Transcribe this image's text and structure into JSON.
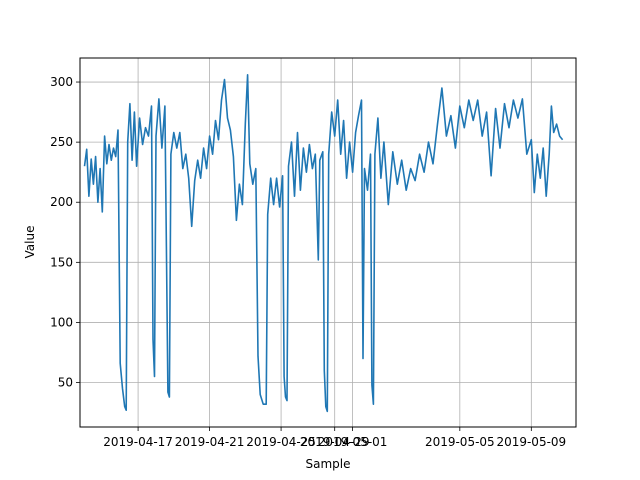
{
  "chart_data": {
    "type": "line",
    "title": "",
    "xlabel": "Sample",
    "ylabel": "Value",
    "grid": true,
    "x_tick_labels": [
      "2019-04-17",
      "2019-04-21",
      "2019-04-25",
      "2019-04-29",
      "2019-05-01",
      "2019-05-05",
      "2019-05-09"
    ],
    "x_tick_dates": [
      "2019-04-17",
      "2019-04-21",
      "2019-04-25",
      "2019-04-28",
      "2019-04-29",
      "2019-05-05",
      "2019-05-09"
    ],
    "xlim": [
      "2019-04-13T18:00",
      "2019-05-11T12:00"
    ],
    "y_ticks": [
      50,
      100,
      150,
      200,
      250,
      300
    ],
    "ylim": [
      13,
      320
    ],
    "series": [
      {
        "color": "#1f77b4",
        "points": [
          [
            "2019-04-14T00:00",
            230
          ],
          [
            "2019-04-14T03:00",
            244
          ],
          [
            "2019-04-14T06:00",
            205
          ],
          [
            "2019-04-14T09:00",
            236
          ],
          [
            "2019-04-14T12:00",
            215
          ],
          [
            "2019-04-14T15:00",
            238
          ],
          [
            "2019-04-14T18:00",
            200
          ],
          [
            "2019-04-14T21:00",
            228
          ],
          [
            "2019-04-15T00:00",
            192
          ],
          [
            "2019-04-15T03:00",
            255
          ],
          [
            "2019-04-15T06:00",
            232
          ],
          [
            "2019-04-15T09:00",
            248
          ],
          [
            "2019-04-15T12:00",
            235
          ],
          [
            "2019-04-15T15:00",
            245
          ],
          [
            "2019-04-15T18:00",
            238
          ],
          [
            "2019-04-15T21:00",
            260
          ],
          [
            "2019-04-16T00:00",
            66
          ],
          [
            "2019-04-16T03:00",
            45
          ],
          [
            "2019-04-16T06:00",
            30
          ],
          [
            "2019-04-16T08:00",
            27
          ],
          [
            "2019-04-16T10:00",
            250
          ],
          [
            "2019-04-16T13:00",
            282
          ],
          [
            "2019-04-16T16:00",
            235
          ],
          [
            "2019-04-16T19:00",
            275
          ],
          [
            "2019-04-16T22:00",
            230
          ],
          [
            "2019-04-17T02:00",
            270
          ],
          [
            "2019-04-17T06:00",
            248
          ],
          [
            "2019-04-17T10:00",
            262
          ],
          [
            "2019-04-17T14:00",
            255
          ],
          [
            "2019-04-17T18:00",
            280
          ],
          [
            "2019-04-17T20:00",
            86
          ],
          [
            "2019-04-17T22:00",
            55
          ],
          [
            "2019-04-18T00:00",
            255
          ],
          [
            "2019-04-18T04:00",
            286
          ],
          [
            "2019-04-18T08:00",
            245
          ],
          [
            "2019-04-18T12:00",
            280
          ],
          [
            "2019-04-18T14:00",
            163
          ],
          [
            "2019-04-18T16:00",
            42
          ],
          [
            "2019-04-18T18:00",
            38
          ],
          [
            "2019-04-18T20:00",
            240
          ],
          [
            "2019-04-19T00:00",
            258
          ],
          [
            "2019-04-19T04:00",
            245
          ],
          [
            "2019-04-19T08:00",
            258
          ],
          [
            "2019-04-19T12:00",
            228
          ],
          [
            "2019-04-19T16:00",
            240
          ],
          [
            "2019-04-19T20:00",
            220
          ],
          [
            "2019-04-20T00:00",
            180
          ],
          [
            "2019-04-20T04:00",
            218
          ],
          [
            "2019-04-20T08:00",
            235
          ],
          [
            "2019-04-20T12:00",
            220
          ],
          [
            "2019-04-20T16:00",
            245
          ],
          [
            "2019-04-20T20:00",
            228
          ],
          [
            "2019-04-21T00:00",
            255
          ],
          [
            "2019-04-21T04:00",
            240
          ],
          [
            "2019-04-21T08:00",
            268
          ],
          [
            "2019-04-21T12:00",
            252
          ],
          [
            "2019-04-21T16:00",
            285
          ],
          [
            "2019-04-21T20:00",
            302
          ],
          [
            "2019-04-22T00:00",
            270
          ],
          [
            "2019-04-22T04:00",
            260
          ],
          [
            "2019-04-22T08:00",
            238
          ],
          [
            "2019-04-22T12:00",
            185
          ],
          [
            "2019-04-22T16:00",
            215
          ],
          [
            "2019-04-22T20:00",
            198
          ],
          [
            "2019-04-23T00:00",
            265
          ],
          [
            "2019-04-23T03:00",
            306
          ],
          [
            "2019-04-23T06:00",
            232
          ],
          [
            "2019-04-23T10:00",
            215
          ],
          [
            "2019-04-23T14:00",
            228
          ],
          [
            "2019-04-23T17:00",
            72
          ],
          [
            "2019-04-23T20:00",
            40
          ],
          [
            "2019-04-24T00:00",
            32
          ],
          [
            "2019-04-24T04:00",
            32
          ],
          [
            "2019-04-24T06:00",
            190
          ],
          [
            "2019-04-24T10:00",
            220
          ],
          [
            "2019-04-24T14:00",
            198
          ],
          [
            "2019-04-24T18:00",
            220
          ],
          [
            "2019-04-24T22:00",
            196
          ],
          [
            "2019-04-25T02:00",
            222
          ],
          [
            "2019-04-25T04:00",
            55
          ],
          [
            "2019-04-25T06:00",
            38
          ],
          [
            "2019-04-25T08:00",
            35
          ],
          [
            "2019-04-25T10:00",
            230
          ],
          [
            "2019-04-25T14:00",
            250
          ],
          [
            "2019-04-25T18:00",
            205
          ],
          [
            "2019-04-25T22:00",
            258
          ],
          [
            "2019-04-26T02:00",
            210
          ],
          [
            "2019-04-26T06:00",
            245
          ],
          [
            "2019-04-26T10:00",
            225
          ],
          [
            "2019-04-26T14:00",
            248
          ],
          [
            "2019-04-26T18:00",
            228
          ],
          [
            "2019-04-26T22:00",
            240
          ],
          [
            "2019-04-27T02:00",
            152
          ],
          [
            "2019-04-27T04:00",
            235
          ],
          [
            "2019-04-27T08:00",
            242
          ],
          [
            "2019-04-27T10:00",
            60
          ],
          [
            "2019-04-27T12:00",
            30
          ],
          [
            "2019-04-27T14:00",
            26
          ],
          [
            "2019-04-27T16:00",
            240
          ],
          [
            "2019-04-27T20:00",
            275
          ],
          [
            "2019-04-28T00:00",
            255
          ],
          [
            "2019-04-28T04:00",
            285
          ],
          [
            "2019-04-28T08:00",
            240
          ],
          [
            "2019-04-28T12:00",
            268
          ],
          [
            "2019-04-28T16:00",
            220
          ],
          [
            "2019-04-28T20:00",
            250
          ],
          [
            "2019-04-29T00:00",
            225
          ],
          [
            "2019-04-29T04:00",
            258
          ],
          [
            "2019-04-29T08:00",
            272
          ],
          [
            "2019-04-29T12:00",
            285
          ],
          [
            "2019-04-29T14:00",
            70
          ],
          [
            "2019-04-29T16:00",
            228
          ],
          [
            "2019-04-29T20:00",
            210
          ],
          [
            "2019-04-30T00:00",
            240
          ],
          [
            "2019-04-30T02:00",
            48
          ],
          [
            "2019-04-30T04:00",
            32
          ],
          [
            "2019-04-30T06:00",
            240
          ],
          [
            "2019-04-30T10:00",
            270
          ],
          [
            "2019-04-30T14:00",
            220
          ],
          [
            "2019-04-30T18:00",
            250
          ],
          [
            "2019-05-01T00:00",
            198
          ],
          [
            "2019-05-01T06:00",
            242
          ],
          [
            "2019-05-01T12:00",
            215
          ],
          [
            "2019-05-01T18:00",
            235
          ],
          [
            "2019-05-02T00:00",
            210
          ],
          [
            "2019-05-02T06:00",
            228
          ],
          [
            "2019-05-02T12:00",
            218
          ],
          [
            "2019-05-02T18:00",
            240
          ],
          [
            "2019-05-03T00:00",
            225
          ],
          [
            "2019-05-03T06:00",
            250
          ],
          [
            "2019-05-03T12:00",
            232
          ],
          [
            "2019-05-03T18:00",
            265
          ],
          [
            "2019-05-04T00:00",
            295
          ],
          [
            "2019-05-04T06:00",
            255
          ],
          [
            "2019-05-04T12:00",
            272
          ],
          [
            "2019-05-04T18:00",
            245
          ],
          [
            "2019-05-05T00:00",
            280
          ],
          [
            "2019-05-05T06:00",
            262
          ],
          [
            "2019-05-05T12:00",
            285
          ],
          [
            "2019-05-05T18:00",
            268
          ],
          [
            "2019-05-06T00:00",
            285
          ],
          [
            "2019-05-06T06:00",
            255
          ],
          [
            "2019-05-06T12:00",
            275
          ],
          [
            "2019-05-06T18:00",
            222
          ],
          [
            "2019-05-07T00:00",
            278
          ],
          [
            "2019-05-07T06:00",
            245
          ],
          [
            "2019-05-07T12:00",
            282
          ],
          [
            "2019-05-07T18:00",
            262
          ],
          [
            "2019-05-08T00:00",
            285
          ],
          [
            "2019-05-08T06:00",
            270
          ],
          [
            "2019-05-08T12:00",
            286
          ],
          [
            "2019-05-08T18:00",
            240
          ],
          [
            "2019-05-09T00:00",
            252
          ],
          [
            "2019-05-09T04:00",
            208
          ],
          [
            "2019-05-09T08:00",
            240
          ],
          [
            "2019-05-09T12:00",
            220
          ],
          [
            "2019-05-09T16:00",
            245
          ],
          [
            "2019-05-09T20:00",
            205
          ],
          [
            "2019-05-10T00:00",
            240
          ],
          [
            "2019-05-10T03:00",
            280
          ],
          [
            "2019-05-10T06:00",
            258
          ],
          [
            "2019-05-10T10:00",
            265
          ],
          [
            "2019-05-10T14:00",
            255
          ],
          [
            "2019-05-10T18:00",
            252
          ]
        ]
      }
    ]
  }
}
